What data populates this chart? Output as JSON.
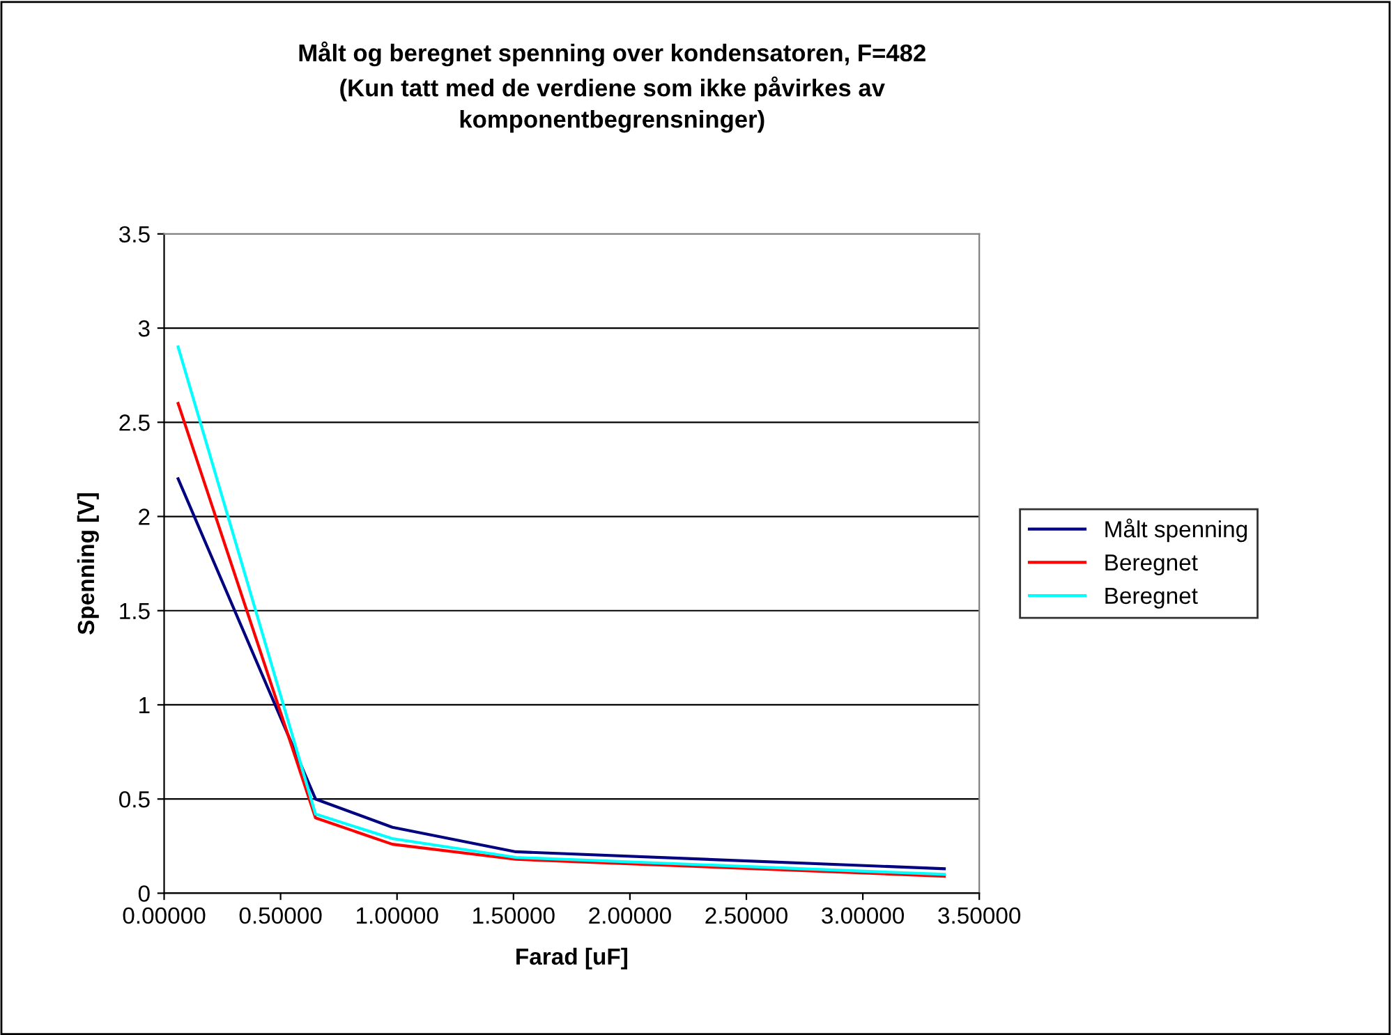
{
  "chart_data": {
    "type": "line",
    "title": "Målt og beregnet spenning over kondensatoren, F=482\n(Kun tatt med de verdiene som ikke påvirkes av\nkomponentbegrensninger)",
    "xlabel": "Farad [uF]",
    "ylabel": "Spenning [V]",
    "x": [
      0.06,
      0.65,
      0.98,
      1.51,
      3.35
    ],
    "series": [
      {
        "name": "Målt spenning",
        "color": "#000080",
        "values": [
          2.2,
          0.5,
          0.35,
          0.22,
          0.13
        ]
      },
      {
        "name": "Beregnet",
        "color": "#ff0000",
        "values": [
          2.6,
          0.4,
          0.26,
          0.18,
          0.09
        ]
      },
      {
        "name": "Beregnet",
        "color": "#00ffff",
        "values": [
          2.9,
          0.42,
          0.29,
          0.19,
          0.1
        ]
      }
    ],
    "xlim": [
      0,
      3.5
    ],
    "xticks": [
      {
        "value": 0,
        "label": "0.00000"
      },
      {
        "value": 0.5,
        "label": "0.50000"
      },
      {
        "value": 1,
        "label": "1.00000"
      },
      {
        "value": 1.5,
        "label": "1.50000"
      },
      {
        "value": 2,
        "label": "2.00000"
      },
      {
        "value": 2.5,
        "label": "2.50000"
      },
      {
        "value": 3,
        "label": "3.00000"
      },
      {
        "value": 3.5,
        "label": "3.50000"
      }
    ],
    "ylim": [
      0,
      3.5
    ],
    "yticks": [
      0,
      0.5,
      1,
      1.5,
      2,
      2.5,
      3,
      3.5
    ],
    "grid": "y",
    "legend": "right",
    "marker": "none",
    "line_style": "solid"
  }
}
